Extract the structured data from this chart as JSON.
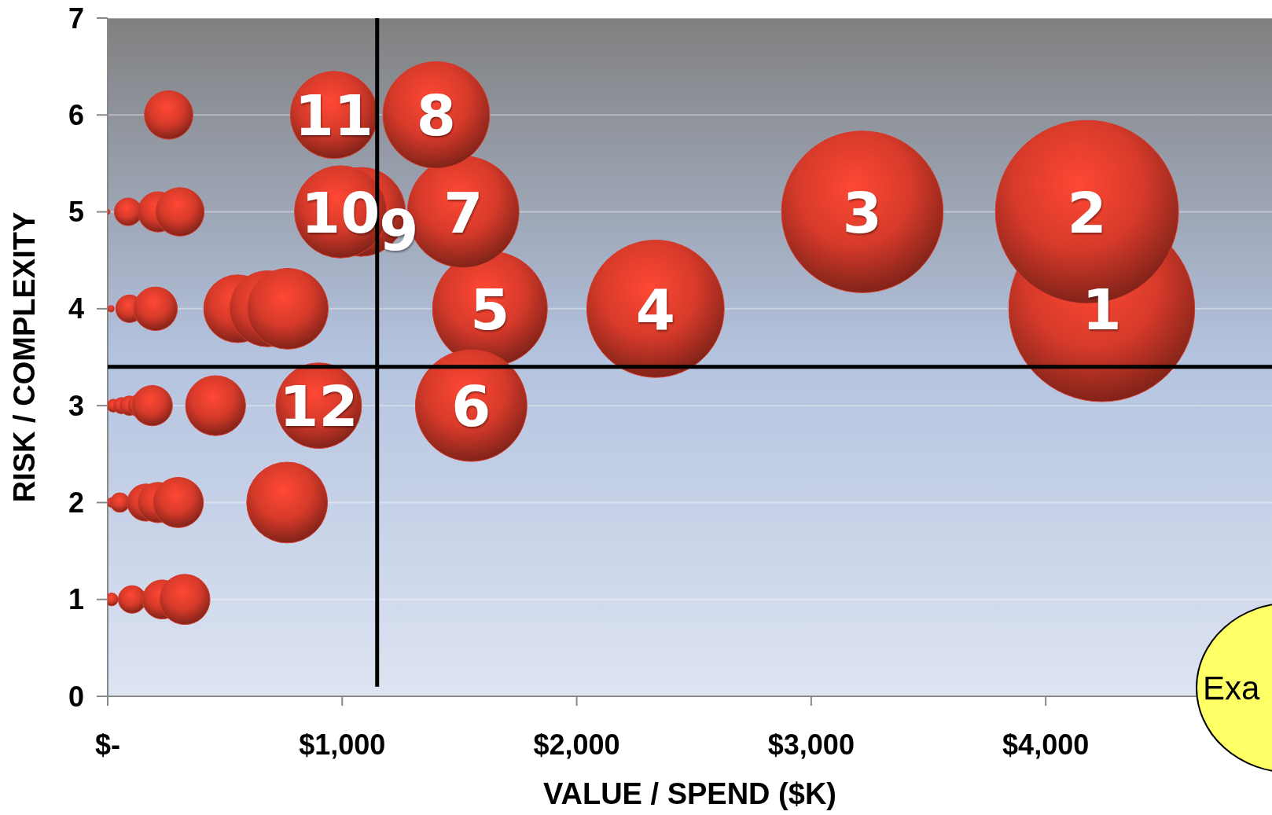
{
  "chart_data": {
    "type": "bubble",
    "xlabel": "VALUE / SPEND ($K)",
    "ylabel": "RISK / COMPLEXITY",
    "xlim": [
      0,
      4965
    ],
    "ylim": [
      0,
      7
    ],
    "xticks": [
      {
        "value": 0,
        "label": "$-"
      },
      {
        "value": 1000,
        "label": "$1,000"
      },
      {
        "value": 2000,
        "label": "$2,000"
      },
      {
        "value": 3000,
        "label": "$3,000"
      },
      {
        "value": 4000,
        "label": "$4,000"
      }
    ],
    "yticks": [
      0,
      1,
      2,
      3,
      4,
      5,
      6,
      7
    ],
    "grid": "y",
    "x": [
      4239,
      4176,
      3218,
      2336,
      1630,
      1550,
      1516,
      1401,
      1080,
      993,
      965,
      900,
      260,
      0,
      87,
      215,
      308,
      14,
      93,
      204,
      554,
      682,
      768,
      24,
      59,
      93,
      135,
      190,
      460,
      17,
      52,
      163,
      215,
      301,
      765,
      17,
      104,
      232,
      329
    ],
    "series": [
      {
        "color": "#d63a2a",
        "values": [
          4,
          5,
          5,
          4,
          4,
          3,
          5,
          6,
          5,
          5,
          6,
          3,
          6,
          5,
          5,
          5,
          5,
          4,
          4,
          4,
          4,
          4,
          4,
          3,
          3,
          3,
          3,
          3,
          3,
          2,
          2,
          2,
          2,
          2,
          2,
          1,
          1,
          1,
          1
        ],
        "sizes": [
          1,
          0.97,
          0.756,
          0.546,
          0.381,
          0.36,
          0.36,
          0.329,
          0.229,
          0.246,
          0.22,
          0.212,
          0.068,
          0.0007,
          0.022,
          0.047,
          0.068,
          0.0012,
          0.022,
          0.055,
          0.133,
          0.167,
          0.189,
          0.0048,
          0.0076,
          0.011,
          0.015,
          0.047,
          0.104,
          0.0027,
          0.011,
          0.04,
          0.047,
          0.073,
          0.189,
          0.0048,
          0.022,
          0.044,
          0.073
        ]
      }
    ],
    "ref_lines": [
      {
        "axis": "x",
        "value": 1149,
        "color": "#000000"
      },
      {
        "axis": "y",
        "value": 3.4,
        "color": "#000000"
      }
    ],
    "annotations": [
      {
        "text": "1",
        "x": 4239,
        "y": 4
      },
      {
        "text": "2",
        "x": 4176,
        "y": 5
      },
      {
        "text": "3",
        "x": 3218,
        "y": 5
      },
      {
        "text": "4",
        "x": 2336,
        "y": 4
      },
      {
        "text": "5",
        "x": 1630,
        "y": 4
      },
      {
        "text": "6",
        "x": 1550,
        "y": 3
      },
      {
        "text": "7",
        "x": 1516,
        "y": 5
      },
      {
        "text": "8",
        "x": 1401,
        "y": 6
      },
      {
        "text": "10",
        "x": 993,
        "y": 5
      },
      {
        "text": "9",
        "x": 1080,
        "y": 5
      },
      {
        "text": "11",
        "x": 965,
        "y": 6
      },
      {
        "text": "12",
        "x": 900,
        "y": 3
      },
      "Exa"
    ]
  }
}
